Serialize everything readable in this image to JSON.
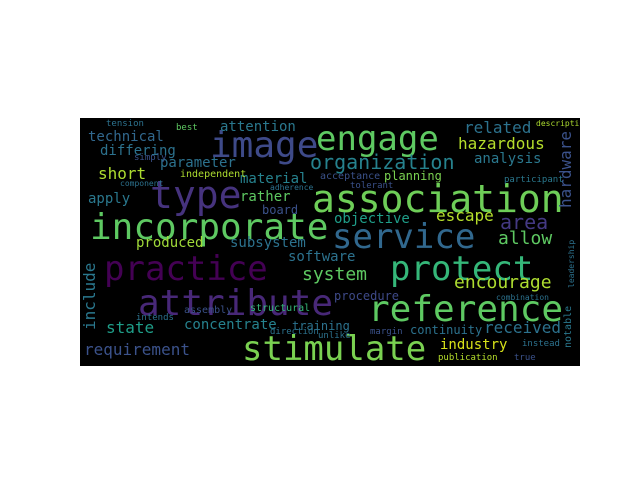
{
  "word_cloud": {
    "words": [
      {
        "text": "engage",
        "color": "#5ec962"
      },
      {
        "text": "image",
        "color": "#3e4a89"
      },
      {
        "text": "association",
        "color": "#6ece58"
      },
      {
        "text": "type",
        "color": "#46337e"
      },
      {
        "text": "incorporate",
        "color": "#5ec962"
      },
      {
        "text": "service",
        "color": "#31688e"
      },
      {
        "text": "practice",
        "color": "#440154"
      },
      {
        "text": "protect",
        "color": "#35b779"
      },
      {
        "text": "attribute",
        "color": "#482878"
      },
      {
        "text": "reference",
        "color": "#5ec962"
      },
      {
        "text": "stimulate",
        "color": "#7ad151"
      },
      {
        "text": "organization",
        "color": "#26828e"
      },
      {
        "text": "attention",
        "color": "#2a788e"
      },
      {
        "text": "technical",
        "color": "#31688e"
      },
      {
        "text": "differing",
        "color": "#2c728e"
      },
      {
        "text": "parameter",
        "color": "#2c728e"
      },
      {
        "text": "short",
        "color": "#addc30"
      },
      {
        "text": "material",
        "color": "#26828e"
      },
      {
        "text": "rather",
        "color": "#5ec962"
      },
      {
        "text": "board",
        "color": "#3b528b"
      },
      {
        "text": "apply",
        "color": "#2a788e"
      },
      {
        "text": "objective",
        "color": "#1f9e89"
      },
      {
        "text": "escape",
        "color": "#b5de2b"
      },
      {
        "text": "related",
        "color": "#2c728e"
      },
      {
        "text": "hazardous",
        "color": "#b5de2b"
      },
      {
        "text": "analysis",
        "color": "#2a788e"
      },
      {
        "text": "area",
        "color": "#443983"
      },
      {
        "text": "hardware",
        "color": "#3b528b"
      },
      {
        "text": "allow",
        "color": "#5ec962"
      },
      {
        "text": "encourage",
        "color": "#addc30"
      },
      {
        "text": "produced",
        "color": "#a0da39"
      },
      {
        "text": "subsystem",
        "color": "#2c728e"
      },
      {
        "text": "software",
        "color": "#2c728e"
      },
      {
        "text": "system",
        "color": "#5ec962"
      },
      {
        "text": "include",
        "color": "#2a788e"
      },
      {
        "text": "state",
        "color": "#1f9e89"
      },
      {
        "text": "concentrate",
        "color": "#26828e"
      },
      {
        "text": "training",
        "color": "#2c728e"
      },
      {
        "text": "procedure",
        "color": "#3e4a89"
      },
      {
        "text": "continuity",
        "color": "#2c728e"
      },
      {
        "text": "received",
        "color": "#2c728e"
      },
      {
        "text": "requirement",
        "color": "#3b528b"
      },
      {
        "text": "industry",
        "color": "#d8e219"
      },
      {
        "text": "notable",
        "color": "#2a788e"
      },
      {
        "text": "assembly",
        "color": "#3b528b"
      },
      {
        "text": "structural",
        "color": "#35b779"
      },
      {
        "text": "planning",
        "color": "#7ad151"
      },
      {
        "text": "tension",
        "color": "#2c728e"
      },
      {
        "text": "best",
        "color": "#5ec962"
      },
      {
        "text": "simply",
        "color": "#3b528b"
      },
      {
        "text": "independent",
        "color": "#addc30"
      },
      {
        "text": "acceptance",
        "color": "#3b528b"
      },
      {
        "text": "tolerant",
        "color": "#3b528b"
      },
      {
        "text": "participant",
        "color": "#2a788e"
      },
      {
        "text": "component",
        "color": "#2c728e"
      },
      {
        "text": "adherence",
        "color": "#2c728e"
      },
      {
        "text": "intends",
        "color": "#2c728e"
      },
      {
        "text": "direction",
        "color": "#2c728e"
      },
      {
        "text": "unlike",
        "color": "#2c728e"
      },
      {
        "text": "margin",
        "color": "#3b528b"
      },
      {
        "text": "publication",
        "color": "#b5de2b"
      },
      {
        "text": "true",
        "color": "#3b528b"
      },
      {
        "text": "instead",
        "color": "#2c728e"
      },
      {
        "text": "combination",
        "color": "#2c728e"
      },
      {
        "text": "description",
        "color": "#addc30"
      },
      {
        "text": "leadership",
        "color": "#2c728e"
      }
    ]
  }
}
